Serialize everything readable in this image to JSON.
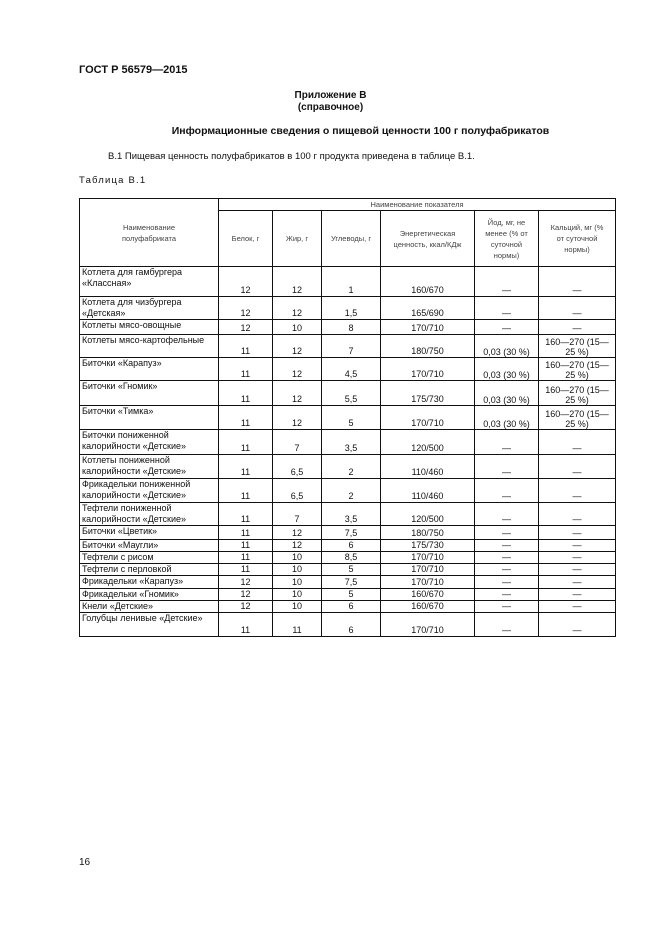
{
  "document_code": "ГОСТ Р 56579—2015",
  "annex_title": "Приложение В",
  "annex_type": "(справочное)",
  "heading": "Информационные сведения о пищевой ценности 100 г полуфабрикатов",
  "paragraph": "В.1 Пищевая ценность полуфабрикатов в 100 г продукта приведена в таблице В.1.",
  "table_label": "Таблица В.1",
  "table": {
    "name_header": "Наименование полуфабриката",
    "group_header": "Наименование показателя",
    "columns": [
      "Белок, г",
      "Жир, г",
      "Углеводы, г",
      "Энергетическая ценность, ккал/КДж",
      "Йод, мг, не менее (% от суточной нормы)",
      "Кальций, мг (% от суточной нормы)"
    ],
    "rows": [
      [
        "Котлета  для гамбургера «Классная»",
        "12",
        "12",
        "1",
        "160/670",
        "—",
        "—"
      ],
      [
        "Котлета для чизбургера «Детская»",
        "12",
        "12",
        "1,5",
        "165/690",
        "—",
        "—"
      ],
      [
        "Котлеты мясо-овощные",
        "12",
        "10",
        "8",
        "170/710",
        "—",
        "—"
      ],
      [
        "Котлеты мясо-картофельные",
        "11",
        "12",
        "7",
        "180/750",
        "0,03 (30 %)",
        "160—270 (15—25 %)"
      ],
      [
        "Биточки «Карапуз»",
        "11",
        "12",
        "4,5",
        "170/710",
        "0,03 (30 %)",
        "160—270 (15—25 %)"
      ],
      [
        "Биточки «Гномик»",
        "11",
        "12",
        "5,5",
        "175/730",
        "0,03 (30 %)",
        "160—270 (15—25 %)"
      ],
      [
        "Биточки «Тимка»",
        "11",
        "12",
        "5",
        "170/710",
        "0,03 (30 %)",
        "160—270 (15—25 %)"
      ],
      [
        "Биточки пониженной калорийности  «Детские»",
        "11",
        "7",
        "3,5",
        "120/500",
        "—",
        "—"
      ],
      [
        "Котлеты пониженной калорийности «Детские»",
        "11",
        "6,5",
        "2",
        "110/460",
        "—",
        "—"
      ],
      [
        "Фрикадельки пониженной калорийности  «Детские»",
        "11",
        "6,5",
        "2",
        "110/460",
        "—",
        "—"
      ],
      [
        "Тефтели пониженной калорийности «Детские»",
        "11",
        "7",
        "3,5",
        "120/500",
        "—",
        "—"
      ],
      [
        "Биточки «Цветик»",
        "11",
        "12",
        "7,5",
        "180/750",
        "—",
        "—"
      ],
      [
        "Биточки «Маугли»",
        "11",
        "12",
        "6",
        "175/730",
        "—",
        "—"
      ],
      [
        "Тефтели с рисом",
        "11",
        "10",
        "8,5",
        "170/710",
        "—",
        "—"
      ],
      [
        "Тефтели с перловкой",
        "11",
        "10",
        "5",
        "170/710",
        "—",
        "—"
      ],
      [
        "Фрикадельки «Карапуз»",
        "12",
        "10",
        "7,5",
        "170/710",
        "—",
        "—"
      ],
      [
        "Фрикадельки «Гномик»",
        "12",
        "10",
        "5",
        "160/670",
        "—",
        "—"
      ],
      [
        "Кнели «Детские»",
        "12",
        "10",
        "6",
        "160/670",
        "—",
        "—"
      ],
      [
        "Голубцы ленивые «Детские»",
        "11",
        "11",
        "6",
        "170/710",
        "—",
        "—"
      ]
    ]
  },
  "page_number": "16"
}
